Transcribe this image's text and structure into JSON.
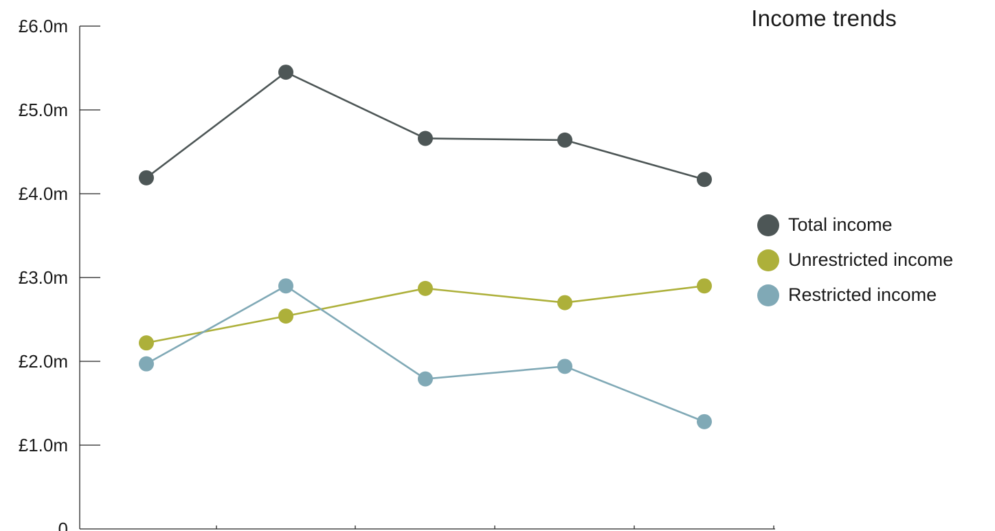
{
  "chart_data": {
    "type": "line",
    "title": "Income trends",
    "xlabel": "",
    "ylabel": "",
    "categories": [
      "",
      "",
      "",
      "",
      ""
    ],
    "yticks": [
      "0",
      "£1.0m",
      "£2.0m",
      "£3.0m",
      "£4.0m",
      "£5.0m",
      "£6.0m"
    ],
    "ylim": [
      0,
      6.0
    ],
    "grid": false,
    "legend_position": "right",
    "series": [
      {
        "name": "Total income",
        "color": "#4d5656",
        "values": [
          4.19,
          5.45,
          4.66,
          4.64,
          4.17
        ]
      },
      {
        "name": "Unrestricted income",
        "color": "#adb03a",
        "values": [
          2.22,
          2.54,
          2.87,
          2.7,
          2.9
        ]
      },
      {
        "name": "Restricted income",
        "color": "#80a9b6",
        "values": [
          1.97,
          2.9,
          1.79,
          1.94,
          1.28
        ]
      }
    ]
  }
}
